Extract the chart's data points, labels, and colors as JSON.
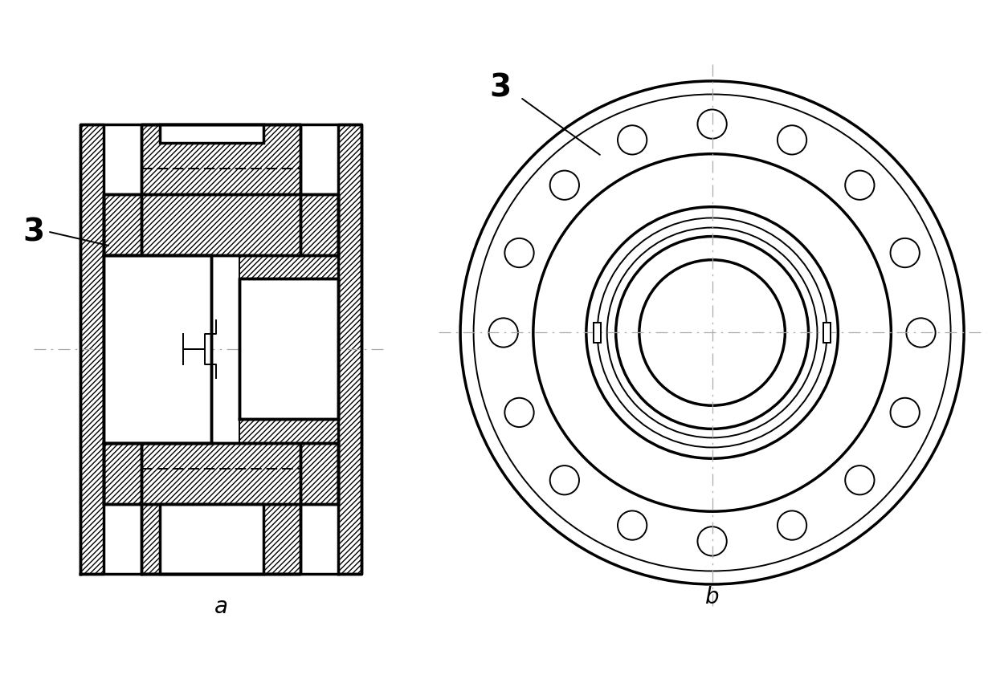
{
  "title_a": "a",
  "title_b": "b",
  "label_3": "3",
  "bg_color": "#ffffff",
  "line_color": "#000000",
  "fig_width": 12.4,
  "fig_height": 8.46
}
